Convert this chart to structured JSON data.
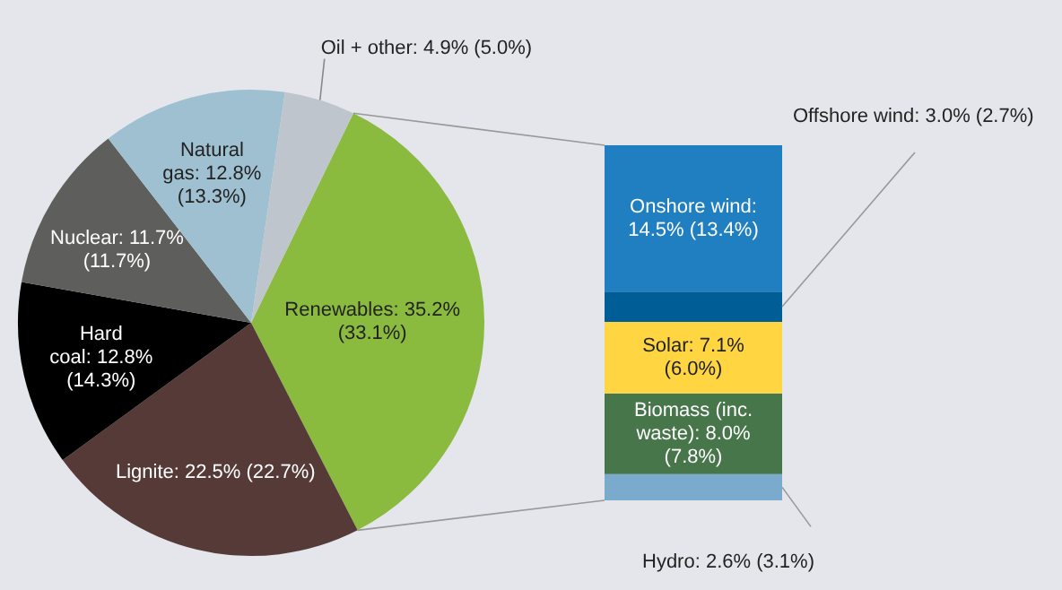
{
  "chart_data": [
    {
      "type": "pie",
      "categories": [
        "Renewables",
        "Lignite",
        "Hard coal",
        "Nuclear",
        "Natural gas",
        "Oil + other"
      ],
      "values": [
        35.2,
        22.5,
        12.8,
        11.7,
        12.8,
        4.9
      ],
      "colors": [
        "#8aba3e",
        "#553a37",
        "#000000",
        "#5e5e5c",
        "#9ec0d0",
        "#bfc5cc"
      ],
      "value_labels": [
        "35.2% (33.1%)",
        "22.5% (22.7%)",
        "12.8% (14.3%)",
        "11.7% (11.7%)",
        "12.8% (13.3%)",
        "4.9% (5.0%)"
      ]
    },
    {
      "type": "bar",
      "stacked": true,
      "categories": [
        null
      ],
      "series": [
        {
          "name": "Hydro:",
          "color": "#7aaacc",
          "values": [
            2.6
          ],
          "value_labels": [
            "2.6% (3.1%)"
          ]
        },
        {
          "name": "Biomass (inc. waste):",
          "color": "#46764a",
          "values": [
            8.0
          ],
          "value_labels": [
            "8.0% (7.8%)"
          ]
        },
        {
          "name": "Solar:",
          "color": "#ffd541",
          "values": [
            7.1
          ],
          "value_labels": [
            "7.1% (6.0%)"
          ]
        },
        {
          "name": "Offshore wind:",
          "color": "#005d96",
          "values": [
            3.0
          ],
          "value_labels": [
            "3.0% (2.7%)"
          ]
        },
        {
          "name": "Onshore wind:",
          "color": "#1f7fc0",
          "values": [
            14.5
          ],
          "value_labels": [
            "14.5% (13.4%)"
          ]
        }
      ]
    }
  ]
}
